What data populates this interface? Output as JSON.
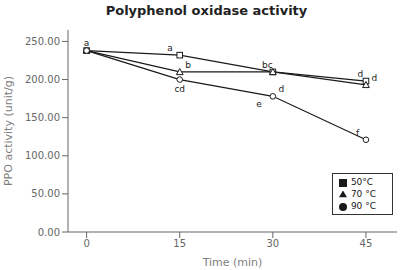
{
  "chart_data": {
    "type": "line",
    "title": "Polyphenol oxidase activity",
    "xlabel": "Time (min)",
    "ylabel": "PPO activity (unit/g)",
    "x": [
      0,
      15,
      30,
      45
    ],
    "series": [
      {
        "name": "50°C",
        "color": "#1a1a1a",
        "marker": "square",
        "line_style": "solid",
        "values": [
          238,
          232,
          210,
          198
        ]
      },
      {
        "name": "70 °C",
        "color": "#1a1a1a",
        "marker": "triangle",
        "line_style": "solid",
        "values": [
          238,
          210,
          210,
          193
        ]
      },
      {
        "name": "90 °C",
        "color": "#1a1a1a",
        "marker": "circle",
        "line_style": "solid",
        "values": [
          238,
          200,
          178,
          121
        ]
      }
    ],
    "annotations": [
      {
        "x": 0,
        "y": 238,
        "text": "a"
      },
      {
        "x": 15,
        "y": 232,
        "text": "a"
      },
      {
        "x": 15,
        "y": 210,
        "text": "b"
      },
      {
        "x": 15,
        "y": 200,
        "text": "cd"
      },
      {
        "x": 30,
        "y": 210,
        "text": "bc"
      },
      {
        "x": 30,
        "y": 178,
        "text": "d"
      },
      {
        "x": 30,
        "y": 178,
        "text": "e"
      },
      {
        "x": 45,
        "y": 198,
        "text": "d"
      },
      {
        "x": 45,
        "y": 193,
        "text": "d"
      },
      {
        "x": 45,
        "y": 121,
        "text": "f"
      }
    ],
    "xlim": [
      -3,
      50
    ],
    "xticks": [
      0,
      15,
      30,
      45
    ],
    "ylim": [
      0,
      265
    ],
    "yticks": [
      {
        "value": 0,
        "label": "0.00"
      },
      {
        "value": 50,
        "label": "50.00"
      },
      {
        "value": 100,
        "label": "100.00"
      },
      {
        "value": 150,
        "label": "150.00"
      },
      {
        "value": 200,
        "label": "200.00"
      },
      {
        "value": 250,
        "label": "250.00"
      }
    ],
    "grid": false,
    "legend": "lower right"
  }
}
